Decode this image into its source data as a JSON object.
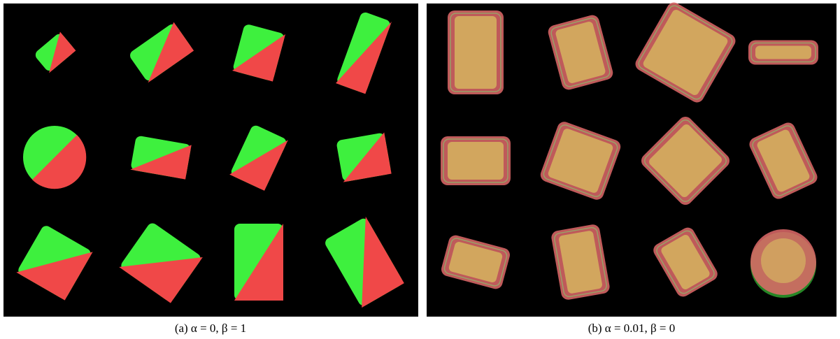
{
  "panels": [
    {
      "caption": "(a) α = 0, β = 1"
    },
    {
      "caption": "(b) α = 0.01, β = 0"
    }
  ]
}
